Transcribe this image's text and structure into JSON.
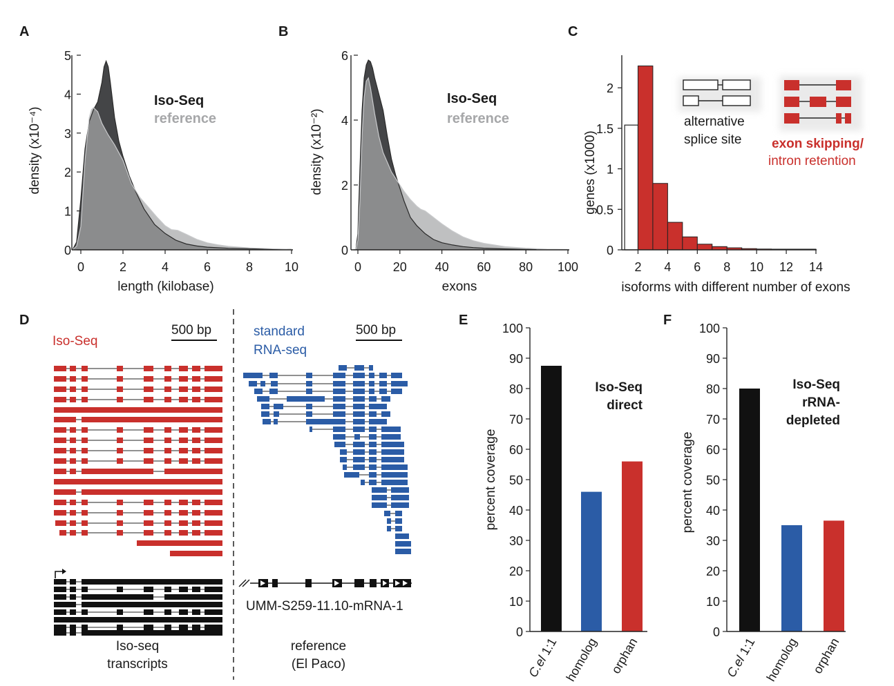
{
  "figure": {
    "colors": {
      "isoseq": "#3a3b3d",
      "reference": "#a6a7a9",
      "overlap": "#8e9093",
      "red": "#c9302c",
      "blue": "#2b5ca6",
      "black": "#111111"
    }
  },
  "chart_data": [
    {
      "panel": "A",
      "type": "area",
      "xlabel": "length (kilobase)",
      "ylabel": "density (x10⁻⁴)",
      "xlim": [
        0,
        10
      ],
      "ylim": [
        0,
        5
      ],
      "xticks": [
        "0",
        "2",
        "4",
        "6",
        "8",
        "10"
      ],
      "yticks": [
        "0",
        "1",
        "2",
        "3",
        "4",
        "5"
      ],
      "legend": [
        "Iso-Seq",
        "reference"
      ],
      "series": [
        {
          "name": "Iso-Seq",
          "x": [
            -0.4,
            -0.2,
            0,
            0.2,
            0.4,
            0.6,
            0.8,
            1.0,
            1.1,
            1.2,
            1.3,
            1.4,
            1.6,
            1.8,
            2.0,
            2.3,
            2.6,
            3.0,
            3.5,
            4.0,
            4.5,
            5.0,
            5.5,
            6.0,
            7.0,
            8.0,
            9.0,
            10.0
          ],
          "y": [
            0,
            0.2,
            1.3,
            2.6,
            3.3,
            3.6,
            3.8,
            4.3,
            4.7,
            4.85,
            4.7,
            4.3,
            3.4,
            2.8,
            2.4,
            1.9,
            1.5,
            1.05,
            0.65,
            0.42,
            0.25,
            0.15,
            0.1,
            0.07,
            0.04,
            0.03,
            0.02,
            0.01
          ]
        },
        {
          "name": "reference",
          "x": [
            -0.4,
            -0.2,
            0,
            0.2,
            0.4,
            0.5,
            0.6,
            0.8,
            1.0,
            1.3,
            1.6,
            2.0,
            2.4,
            2.8,
            3.2,
            3.6,
            4.0,
            4.3,
            4.6,
            5.0,
            5.5,
            6.0,
            6.5,
            7.0,
            8.0,
            9.0,
            10.0
          ],
          "y": [
            0,
            0.1,
            0.6,
            2.3,
            3.4,
            3.6,
            3.65,
            3.55,
            3.25,
            2.95,
            2.7,
            2.3,
            1.7,
            1.35,
            1.1,
            0.85,
            0.62,
            0.52,
            0.5,
            0.4,
            0.27,
            0.18,
            0.13,
            0.09,
            0.05,
            0.03,
            0.01
          ]
        }
      ]
    },
    {
      "panel": "B",
      "type": "area",
      "xlabel": "exons",
      "ylabel": "density (x10⁻²)",
      "xlim": [
        0,
        100
      ],
      "ylim": [
        0,
        6
      ],
      "xticks": [
        "0",
        "20",
        "40",
        "60",
        "80",
        "100"
      ],
      "yticks": [
        "0",
        "2",
        "4",
        "6"
      ],
      "legend": [
        "Iso-Seq",
        "reference"
      ],
      "series": [
        {
          "name": "Iso-Seq",
          "x": [
            -1,
            0,
            1,
            2,
            3,
            4,
            5,
            6,
            7,
            8,
            10,
            12,
            14,
            16,
            18,
            20,
            22,
            25,
            28,
            32,
            36,
            40,
            45,
            50,
            55,
            60,
            70,
            80,
            85
          ],
          "y": [
            0,
            0.5,
            2.5,
            4.3,
            5.3,
            5.7,
            5.85,
            5.8,
            5.6,
            5.3,
            4.8,
            4.3,
            3.5,
            2.8,
            2.3,
            1.9,
            1.5,
            1.0,
            0.75,
            0.5,
            0.32,
            0.22,
            0.15,
            0.1,
            0.07,
            0.05,
            0.03,
            0.015,
            0.01
          ]
        },
        {
          "name": "reference",
          "x": [
            -1,
            0,
            1,
            2,
            3,
            4,
            5,
            6,
            7,
            8,
            10,
            12,
            14,
            16,
            18,
            20,
            22,
            25,
            28,
            30,
            32,
            35,
            38,
            40,
            45,
            50,
            55,
            60,
            70,
            80,
            90,
            100
          ],
          "y": [
            0,
            0.3,
            1.5,
            3.5,
            4.7,
            5.2,
            5.3,
            5.0,
            4.6,
            4.2,
            3.5,
            3.0,
            2.7,
            2.4,
            2.2,
            2.0,
            1.8,
            1.55,
            1.35,
            1.25,
            1.2,
            1.05,
            0.9,
            0.8,
            0.58,
            0.4,
            0.28,
            0.2,
            0.1,
            0.05,
            0.02,
            0.01
          ]
        }
      ]
    },
    {
      "panel": "C",
      "type": "bar",
      "xlabel": "isoforms with different number of exons",
      "ylabel": "genes (x1000)",
      "xlim": [
        1,
        14
      ],
      "ylim": [
        0,
        2.3
      ],
      "xticks": [
        "2",
        "4",
        "6",
        "8",
        "10",
        "12",
        "14"
      ],
      "yticks": [
        "0",
        "0.5",
        "1",
        "1.5",
        "2"
      ],
      "series": [
        {
          "name": "alternative splice site",
          "bins": [
            [
              1.1,
              2.0
            ]
          ],
          "values": [
            1.54
          ]
        },
        {
          "name": "exon skipping/ intron retention",
          "bins": [
            [
              2.0,
              3.0
            ],
            [
              3.0,
              4.0
            ],
            [
              4.0,
              5.0
            ],
            [
              5.0,
              6.0
            ],
            [
              6.0,
              7.0
            ],
            [
              7.0,
              8.0
            ],
            [
              8.0,
              9.0
            ],
            [
              9.0,
              10.0
            ],
            [
              10.0,
              11.0
            ],
            [
              11.0,
              12.0
            ],
            [
              12.0,
              13.0
            ],
            [
              13.0,
              14.0
            ]
          ],
          "values": [
            2.27,
            0.82,
            0.34,
            0.16,
            0.07,
            0.04,
            0.025,
            0.015,
            0.01,
            0.007,
            0.005,
            0.004
          ]
        }
      ],
      "legend": {
        "white_line1": "alternative",
        "white_line2": "splice site",
        "red_line1": "exon skipping/",
        "red_line2": "intron retention"
      }
    },
    {
      "panel": "E",
      "type": "bar",
      "ylabel": "percent coverage",
      "ylim": [
        0,
        100
      ],
      "yticks": [
        "0",
        "10",
        "20",
        "30",
        "40",
        "50",
        "60",
        "70",
        "80",
        "90",
        "100"
      ],
      "categories": [
        "C.el 1:1",
        "homolog",
        "orphan"
      ],
      "values": [
        87.5,
        46,
        56
      ],
      "annotation": [
        "Iso-Seq",
        "direct"
      ]
    },
    {
      "panel": "F",
      "type": "bar",
      "ylabel": "percent coverage",
      "ylim": [
        0,
        100
      ],
      "yticks": [
        "0",
        "10",
        "20",
        "30",
        "40",
        "50",
        "60",
        "70",
        "80",
        "90",
        "100"
      ],
      "categories": [
        "C.el 1:1",
        "homolog",
        "orphan"
      ],
      "values": [
        80,
        35,
        36.5
      ],
      "annotation": [
        "Iso-Seq",
        "rRNA-",
        "depleted"
      ]
    }
  ],
  "panel_d": {
    "left_title": "Iso-Seq",
    "right_title_line1": "standard",
    "right_title_line2": "RNA-seq",
    "scale_left": "500 bp",
    "scale_right": "500 bp",
    "bottom_left_line1": "Iso-seq",
    "bottom_left_line2": "transcripts",
    "bottom_right_line1": "reference",
    "bottom_right_line2": "(El Paco)",
    "gene_id": "UMM-S259-11.10-mRNA-1"
  }
}
